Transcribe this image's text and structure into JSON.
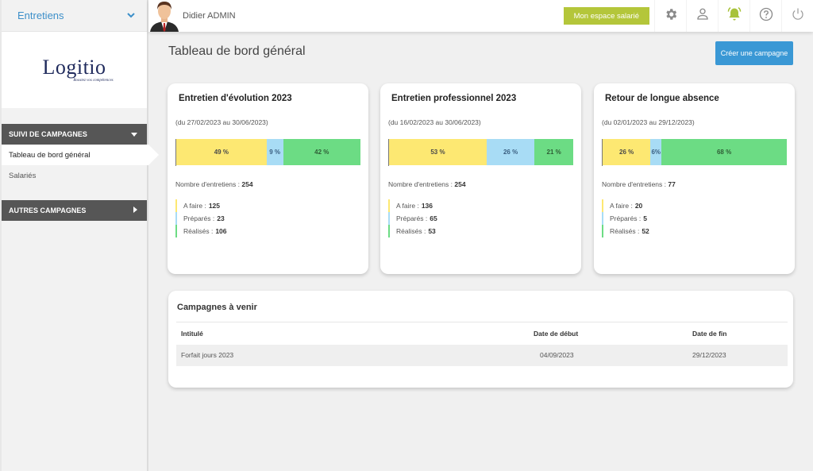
{
  "sidebar": {
    "module_label": "Entretiens",
    "logo": {
      "name": "Logitio",
      "tagline": "Boostez vos compétences"
    },
    "sections": [
      {
        "label": "SUIVI DE CAMPAGNES",
        "expanded": true,
        "items": [
          {
            "label": "Tableau de bord général",
            "active": true
          },
          {
            "label": "Salariés",
            "active": false
          }
        ]
      },
      {
        "label": "AUTRES CAMPAGNES",
        "expanded": false,
        "items": []
      }
    ]
  },
  "topbar": {
    "user_name": "Didier ADMIN",
    "espace_button": "Mon espace salarié",
    "icons": [
      "gear-icon",
      "user-icon",
      "bell-icon",
      "help-icon",
      "power-icon"
    ]
  },
  "main": {
    "page_title": "Tableau de bord général",
    "create_button": "Créer une campagne",
    "campaigns": [
      {
        "title": "Entretien d'évolution 2023",
        "dates": "(du 27/02/2023 au 30/06/2023)",
        "pct": {
          "afaire": "49 %",
          "prep": "9 %",
          "real": "42 %"
        },
        "widths": {
          "afaire": 49,
          "prep": 9,
          "real": 42
        },
        "nb_label": "Nombre d'entretiens :",
        "nb": "254",
        "afaire_label": "A faire :",
        "afaire": "125",
        "prep_label": "Préparés :",
        "prep": "23",
        "real_label": "Réalisés :",
        "real": "106"
      },
      {
        "title": "Entretien professionnel 2023",
        "dates": "(du 16/02/2023 au 30/06/2023)",
        "pct": {
          "afaire": "53 %",
          "prep": "26 %",
          "real": "21 %"
        },
        "widths": {
          "afaire": 53,
          "prep": 26,
          "real": 21
        },
        "nb_label": "Nombre d'entretiens :",
        "nb": "254",
        "afaire_label": "A faire :",
        "afaire": "136",
        "prep_label": "Préparés :",
        "prep": "65",
        "real_label": "Réalisés :",
        "real": "53"
      },
      {
        "title": "Retour de longue absence",
        "dates": "(du 02/01/2023 au 29/12/2023)",
        "pct": {
          "afaire": "26 %",
          "prep": "6%",
          "real": "68 %"
        },
        "widths": {
          "afaire": 26,
          "prep": 6,
          "real": 68
        },
        "nb_label": "Nombre d'entretiens :",
        "nb": "77",
        "afaire_label": "A faire :",
        "afaire": "20",
        "prep_label": "Préparés :",
        "prep": "5",
        "real_label": "Réalisés :",
        "real": "52"
      }
    ],
    "upcoming": {
      "title": "Campagnes à venir",
      "columns": [
        "Intitulé",
        "Date de début",
        "Date de fin"
      ],
      "rows": [
        [
          "Forfait jours 2023",
          "04/09/2023",
          "29/12/2023"
        ]
      ]
    }
  },
  "colors": {
    "afaire": "#fde872",
    "prep": "#a8dcf5",
    "real": "#6cdc84",
    "accent_blue": "#3a98d5",
    "accent_green": "#b4c63a",
    "section_dark": "#565656"
  }
}
